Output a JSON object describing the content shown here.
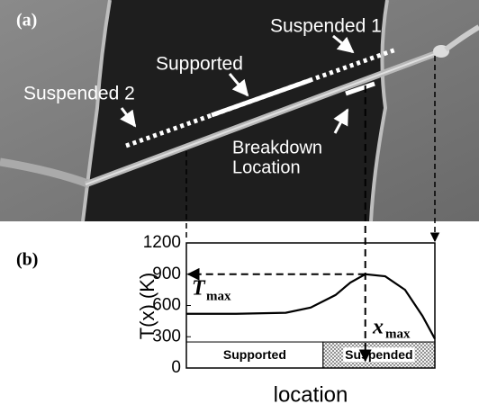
{
  "image_labels": {
    "panel": "(a)",
    "suspended_1": "Suspended 1",
    "supported": "Supported",
    "suspended_2": "Suspended 2",
    "breakdown": [
      "Breakdown",
      "Location"
    ]
  },
  "chart_data": {
    "type": "line",
    "panel": "(b)",
    "ylabel": "T(x) (K)",
    "xlabel": "location",
    "x": [
      0,
      0.2,
      0.4,
      0.5,
      0.6,
      0.66,
      0.72,
      0.8,
      0.88,
      0.95,
      1
    ],
    "series": [
      {
        "color": "#000000",
        "values": [
          520,
          520,
          530,
          580,
          700,
          820,
          900,
          880,
          750,
          500,
          280
        ]
      }
    ],
    "xlim": [
      0,
      1
    ],
    "ylim": [
      0,
      1200
    ],
    "yticks": [
      0,
      300,
      600,
      900,
      1200
    ],
    "t_max": {
      "symbol": "T",
      "sub": "max",
      "value": 900
    },
    "x_max": {
      "symbol": "x",
      "sub": "max",
      "value": 0.72
    },
    "region_height": 250,
    "regions": [
      {
        "label": "Supported",
        "x": [
          0,
          0.55
        ]
      },
      {
        "label": "Suspended",
        "x": [
          0.55,
          1
        ]
      }
    ]
  }
}
